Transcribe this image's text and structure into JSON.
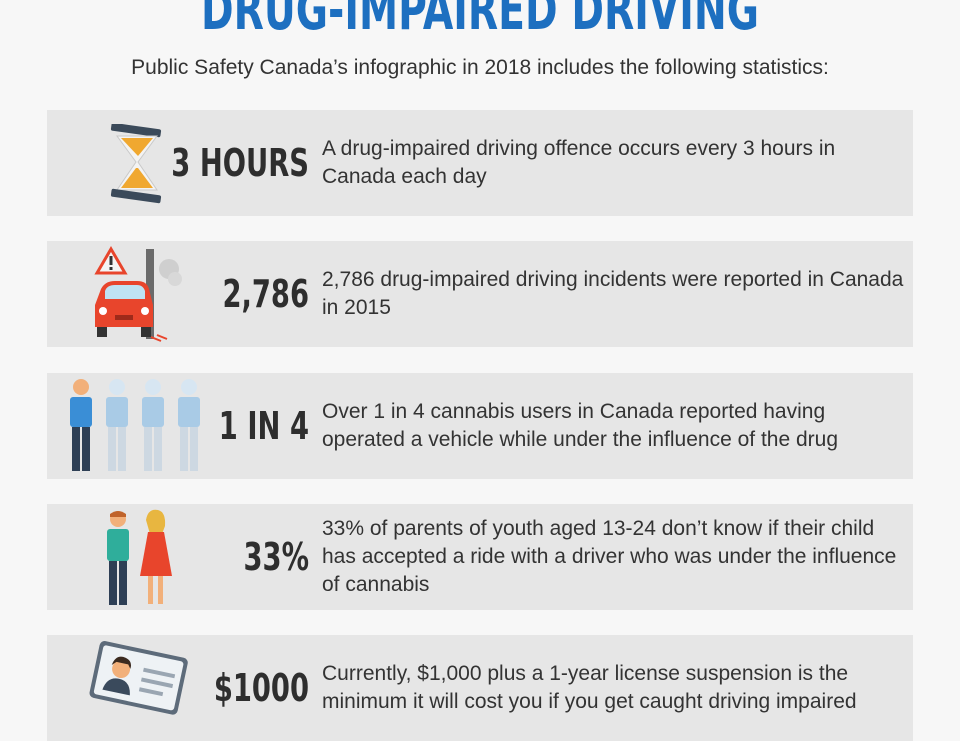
{
  "header": {
    "title": "DRUG-IMPAIRED DRIVING",
    "subtitle": "Public Safety Canada’s infographic in 2018 includes the following statistics:"
  },
  "stats": [
    {
      "value": "3 HOURS",
      "text": "A drug-impaired driving offence occurs every 3 hours in Canada each day",
      "icon": "hourglass-icon"
    },
    {
      "value": "2,786",
      "text": "2,786 drug-impaired driving incidents were reported in Canada in 2015",
      "icon": "car-crash-icon"
    },
    {
      "value": "1 IN 4",
      "text": "Over 1 in 4 cannabis users in Canada reported having operated a vehicle while under the influence of the drug",
      "icon": "people-icon"
    },
    {
      "value": "33%",
      "text": "33% of parents of youth aged 13-24 don’t know if their child has accepted a ride with a driver who was under the influence of cannabis",
      "icon": "parents-icon"
    },
    {
      "value": "$1000",
      "text": "Currently, $1,000 plus a 1-year license suspension is the minimum it will cost you if you get caught driving impaired",
      "icon": "license-card-icon"
    }
  ],
  "colors": {
    "title": "#1d6fc0",
    "row_background": "#e6e6e6",
    "accent_orange": "#f0a830",
    "car_red": "#e8452c",
    "person_blue": "#3a8ed6",
    "person_faded": "#a9cbe6"
  }
}
